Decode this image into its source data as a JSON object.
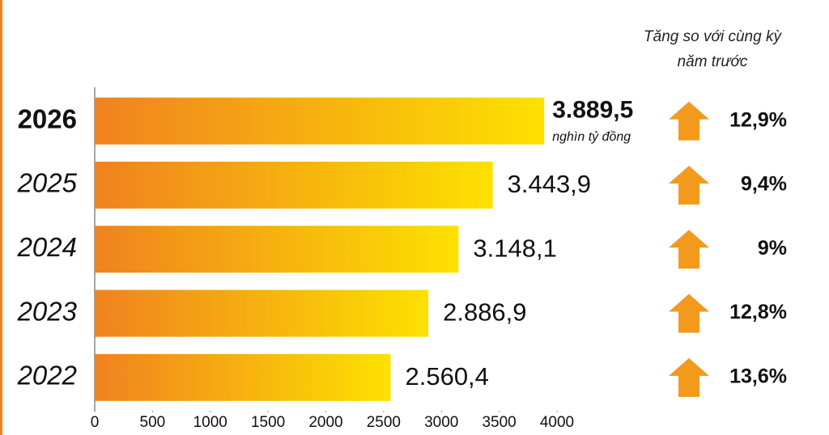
{
  "chart_data": {
    "type": "bar",
    "orientation": "horizontal",
    "categories": [
      "2026",
      "2025",
      "2024",
      "2023",
      "2022"
    ],
    "values": [
      3889.5,
      3443.9,
      3148.1,
      2886.9,
      2560.4
    ],
    "value_labels": [
      "3.889,5",
      "3.443,9",
      "3.148,1",
      "2.886,9",
      "2.560,4"
    ],
    "unit": "nghìn tỷ đồng",
    "gradient": [
      "#f0821f",
      "#fde100"
    ],
    "xlim": [
      0,
      4000
    ],
    "xticks": [
      0,
      500,
      1000,
      1500,
      2000,
      2500,
      3000,
      3500,
      4000
    ],
    "growth_title": "Tăng so với cùng kỳ năm trước",
    "growth": [
      12.9,
      9.4,
      9,
      12.8,
      13.6
    ],
    "growth_labels": [
      "12,9%",
      "9,4%",
      "9%",
      "12,8%",
      "13,6%"
    ],
    "arrow_color": "#f39a1c"
  }
}
